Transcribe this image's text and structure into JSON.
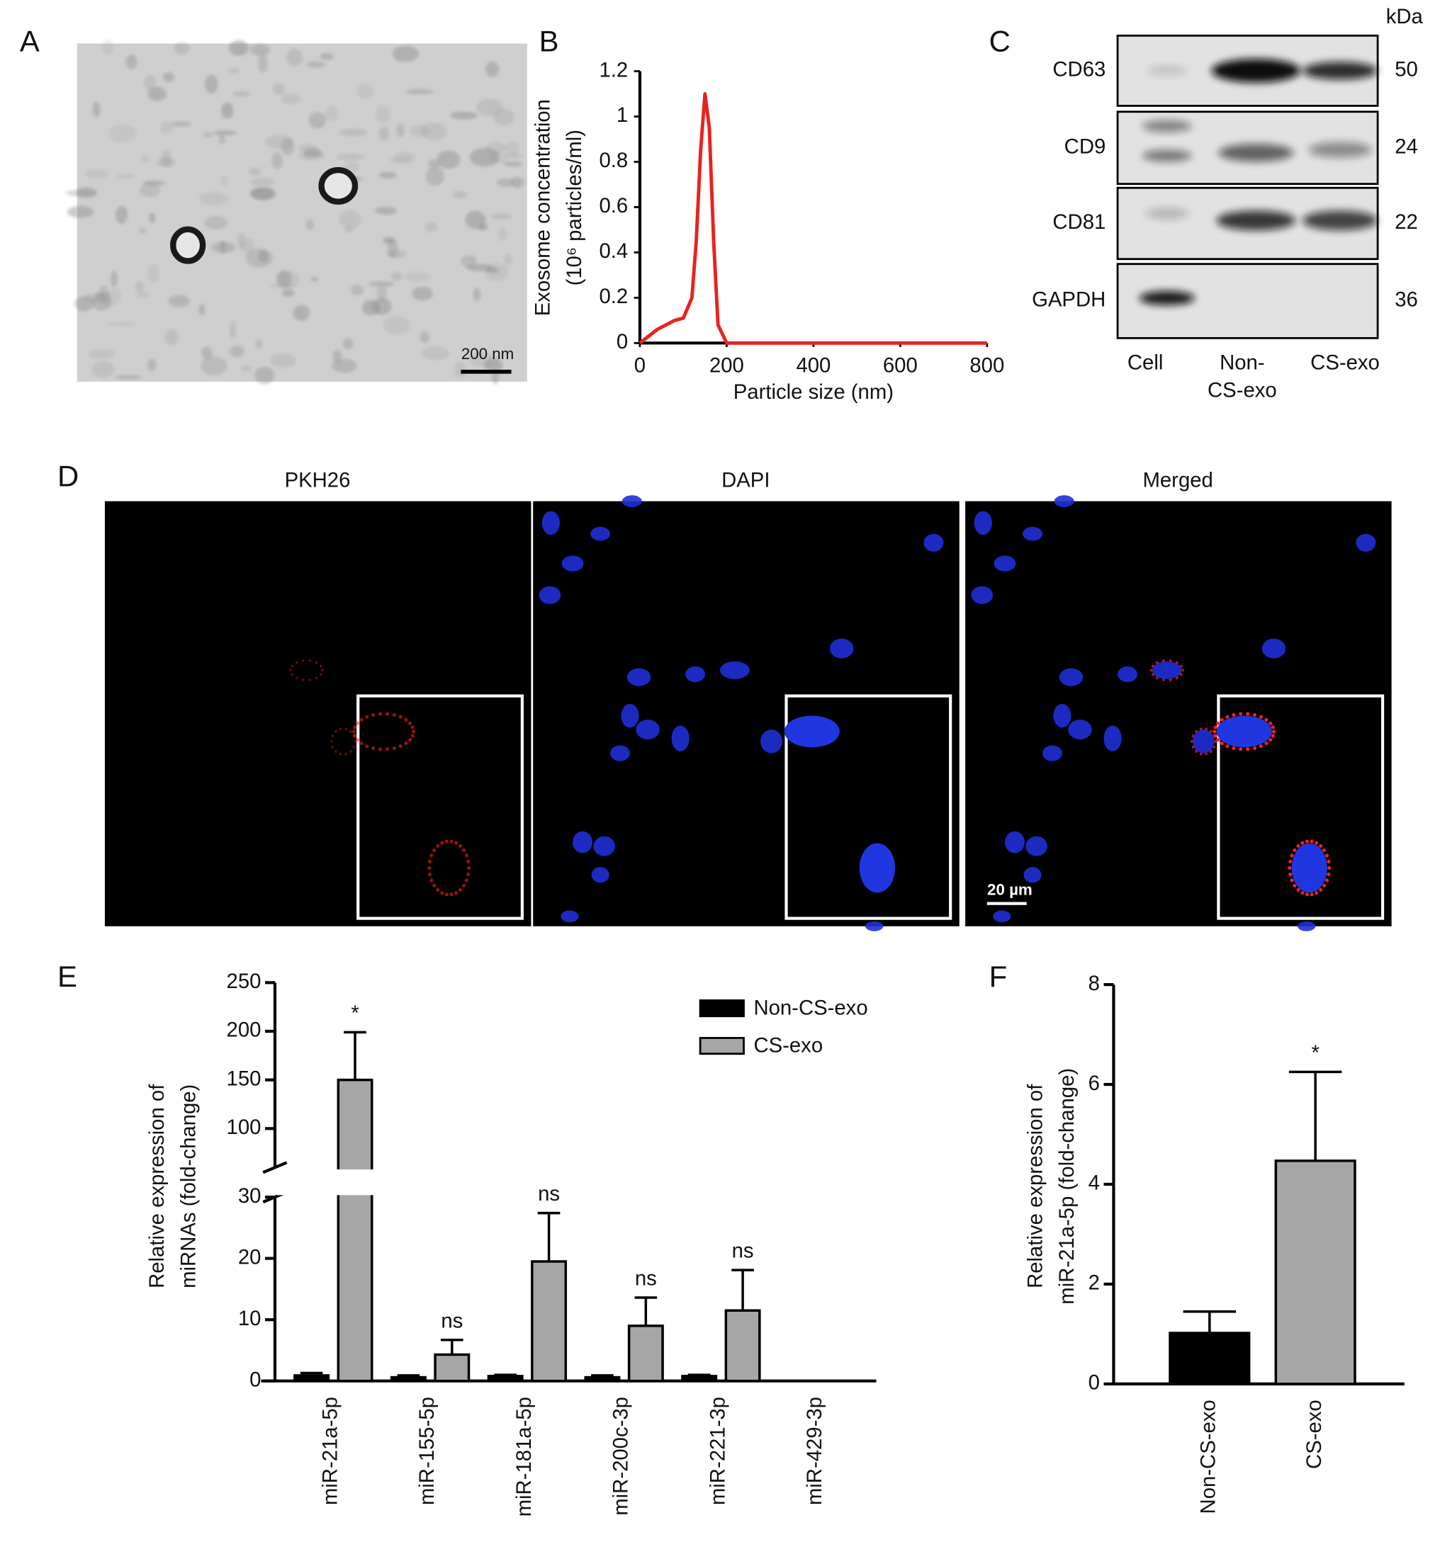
{
  "panels": {
    "A": {
      "label": "A",
      "scale_bar": "200 nm"
    },
    "C": {
      "label": "C",
      "unit": "kDa",
      "proteins": [
        "CD63",
        "CD9",
        "CD81",
        "GAPDH"
      ],
      "kda": [
        50,
        24,
        22,
        36
      ],
      "lanes": [
        [
          "Cell"
        ],
        [
          "Non-",
          "CS-exo"
        ],
        [
          "CS-exo"
        ]
      ]
    },
    "D": {
      "label": "D",
      "titles": [
        "PKH26",
        "DAPI",
        "Merged"
      ],
      "scale_bar": "20 µm"
    }
  },
  "chart_data": [
    {
      "type": "line",
      "panel": "B",
      "xlabel": "Particle size (nm)",
      "ylabel": [
        "Exosome concentration",
        "(10⁶ particles/ml)"
      ],
      "x": [
        0,
        20,
        40,
        60,
        80,
        100,
        120,
        130,
        140,
        150,
        160,
        170,
        180,
        200,
        800
      ],
      "values": [
        0,
        0.03,
        0.06,
        0.08,
        0.1,
        0.11,
        0.2,
        0.45,
        0.85,
        1.1,
        0.95,
        0.45,
        0.08,
        0,
        0
      ],
      "color": "#e8231c",
      "xlim": [
        0,
        800
      ],
      "xticks": [
        0,
        200,
        400,
        600,
        800
      ],
      "ylim": [
        0,
        1.2
      ],
      "yticks": [
        0,
        0.2,
        0.4,
        0.6,
        0.8,
        1,
        1.2
      ]
    },
    {
      "type": "bar",
      "panel": "E",
      "ylabel": [
        "Relative expression of",
        "miRNAs (fold-change)"
      ],
      "categories": [
        "miR-21a-5p",
        "miR-155-5p",
        "miR-181a-5p",
        "miR-200c-3p",
        "miR-221-3p",
        "miR-429-3p"
      ],
      "series": [
        {
          "name": "Non-CS-exo",
          "color": "#000000",
          "values": [
            0.9,
            0.6,
            0.8,
            0.6,
            0.8,
            0
          ],
          "errors": [
            0.4,
            0.3,
            0.2,
            0.3,
            0.2,
            0
          ]
        },
        {
          "name": "CS-exo",
          "color": "#a6a6a6",
          "values": [
            150,
            4.3,
            19.5,
            9,
            11.5,
            0
          ],
          "errors": [
            49,
            2.4,
            7.9,
            4.6,
            6.6,
            0
          ]
        }
      ],
      "annotations": [
        "*",
        "ns",
        "ns",
        "ns",
        "ns",
        null
      ],
      "ylim": [
        0,
        250
      ],
      "y_break": [
        30,
        60
      ],
      "yticks": [
        0,
        10,
        20,
        30,
        100,
        150,
        200,
        250
      ]
    },
    {
      "type": "bar",
      "panel": "F",
      "ylabel": [
        "Relative expression of",
        "miR-21a-5p (fold-change)"
      ],
      "categories": [
        "Non-CS-exo",
        "CS-exo"
      ],
      "values": [
        1.02,
        4.47
      ],
      "errors": [
        0.43,
        1.78
      ],
      "colors": [
        "#000000",
        "#a6a6a6"
      ],
      "annotations": [
        null,
        "*"
      ],
      "ylim": [
        0,
        8
      ],
      "yticks": [
        0,
        2,
        4,
        6,
        8
      ]
    }
  ]
}
